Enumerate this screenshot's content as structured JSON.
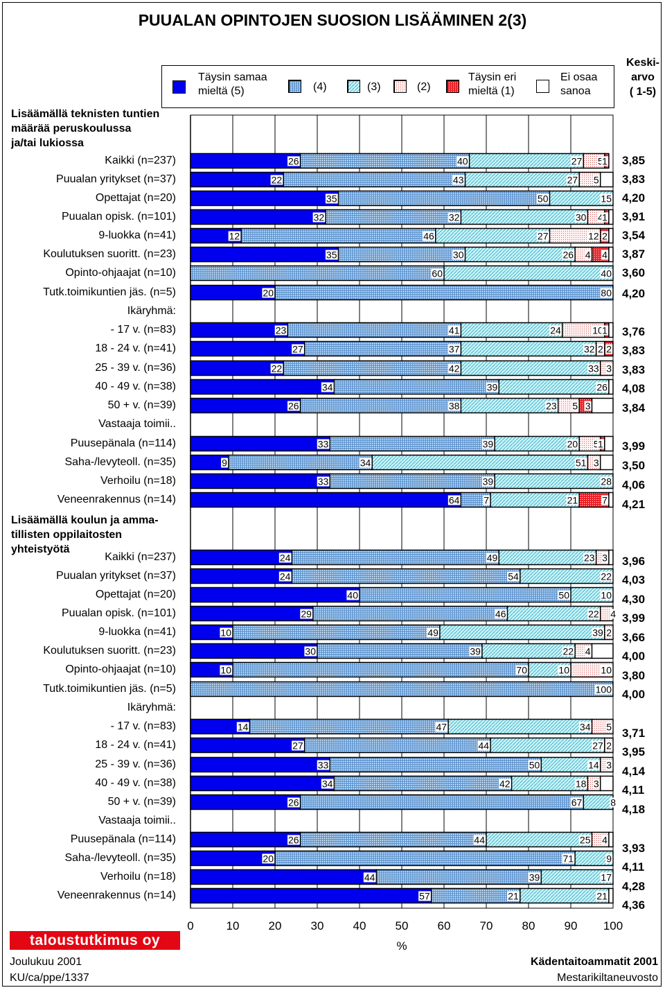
{
  "title": "PUUALAN OPINTOJEN SUOSION LISÄÄMINEN 2(3)",
  "legend": {
    "items": [
      {
        "label_lines": [
          "Täysin samaa",
          "mieltä (5)"
        ],
        "key": "s5"
      },
      {
        "label_lines": [
          "(4)"
        ],
        "key": "s4"
      },
      {
        "label_lines": [
          "(3)"
        ],
        "key": "s3"
      },
      {
        "label_lines": [
          "(2)"
        ],
        "key": "s2"
      },
      {
        "label_lines": [
          "Täysin eri",
          "mieltä (1)"
        ],
        "key": "s1"
      },
      {
        "label_lines": [
          "Ei osaa",
          "sanoa"
        ],
        "key": "eos"
      }
    ]
  },
  "avg_header": [
    "Keski-",
    "arvo",
    "( 1-5)"
  ],
  "colors": {
    "s5": "#0000ee",
    "s4": "#7fb0e0",
    "s3": "#b8f0f0",
    "s2": "#f2dada",
    "s1": "#e8232a",
    "eos": "#ffffff"
  },
  "chart_data": {
    "type": "stacked-bar-horizontal",
    "xlabel": "%",
    "xlim": [
      0,
      100
    ],
    "xticks": [
      "0",
      "10",
      "20",
      "30",
      "40",
      "50",
      "60",
      "70",
      "80",
      "90",
      "100"
    ],
    "series_names": [
      "Täysin samaa mieltä (5)",
      "(4)",
      "(3)",
      "(2)",
      "Täysin eri mieltä (1)",
      "Ei osaa sanoa"
    ],
    "sections": [
      {
        "title_lines": [
          "Lisäämällä teknisten tuntien",
          "määrää peruskoulussa",
          "ja/tai lukiossa"
        ],
        "rows": [
          {
            "label": "Kaikki (n=237)",
            "values": [
              26,
              40,
              27,
              5,
              1,
              0
            ],
            "labels": [
              "26",
              "40",
              "27",
              "5",
              "1",
              ""
            ],
            "avg": "3,85"
          },
          {
            "label": "Puualan yritykset (n=37)",
            "values": [
              22,
              43,
              27,
              5,
              0,
              3
            ],
            "labels": [
              "22",
              "43",
              "27",
              "5",
              "",
              ""
            ],
            "avg": "3,83"
          },
          {
            "label": "Opettajat (n=20)",
            "values": [
              35,
              50,
              15,
              0,
              0,
              0
            ],
            "labels": [
              "35",
              "50",
              "15",
              "",
              "",
              ""
            ],
            "avg": "4,20"
          },
          {
            "label": "Puualan opisk. (n=101)",
            "values": [
              32,
              32,
              30,
              4,
              1,
              1
            ],
            "labels": [
              "32",
              "32",
              "30",
              "4",
              "1",
              ""
            ],
            "avg": "3,91"
          },
          {
            "label": "9-luokka (n=41)",
            "values": [
              12,
              46,
              27,
              12,
              2,
              1
            ],
            "labels": [
              "12",
              "46",
              "27",
              "12",
              "2",
              ""
            ],
            "avg": "3,54"
          },
          {
            "label": "Koulutuksen suoritt. (n=23)",
            "values": [
              35,
              30,
              26,
              4,
              4,
              1
            ],
            "labels": [
              "35",
              "30",
              "26",
              "4",
              "4",
              ""
            ],
            "avg": "3,87"
          },
          {
            "label": "Opinto-ohjaajat (n=10)",
            "values": [
              0,
              60,
              40,
              0,
              0,
              0
            ],
            "labels": [
              "",
              "60",
              "40",
              "",
              "",
              ""
            ],
            "avg": "3,60"
          },
          {
            "label": "Tutk.toimikuntien jäs. (n=5)",
            "values": [
              20,
              80,
              0,
              0,
              0,
              0
            ],
            "labels": [
              "20",
              "80",
              "",
              "",
              "",
              ""
            ],
            "avg": "4,20"
          },
          {
            "label": "Ikäryhmä:",
            "heading": true
          },
          {
            "label": "- 17 v.  (n=83)",
            "values": [
              23,
              41,
              24,
              10,
              1,
              1
            ],
            "labels": [
              "23",
              "41",
              "24",
              "10",
              "1",
              ""
            ],
            "avg": "3,76"
          },
          {
            "label": "18 - 24 v. (n=41)",
            "values": [
              27,
              37,
              32,
              2,
              2,
              0
            ],
            "labels": [
              "27",
              "37",
              "32",
              "2",
              "2",
              ""
            ],
            "avg": "3,83"
          },
          {
            "label": "25 - 39 v. (n=36)",
            "values": [
              22,
              42,
              33,
              3,
              0,
              0
            ],
            "labels": [
              "22",
              "42",
              "33",
              "3",
              "",
              ""
            ],
            "avg": "3,83"
          },
          {
            "label": "40 - 49 v. (n=38)",
            "values": [
              34,
              39,
              26,
              0,
              0,
              1
            ],
            "labels": [
              "34",
              "39",
              "26",
              "",
              "",
              ""
            ],
            "avg": "4,08"
          },
          {
            "label": "50 + v.  (n=39)",
            "values": [
              26,
              38,
              23,
              5,
              3,
              5
            ],
            "labels": [
              "26",
              "38",
              "23",
              "5",
              "3",
              ""
            ],
            "avg": "3,84"
          },
          {
            "label": "Vastaaja toimii..",
            "heading": true
          },
          {
            "label": "Puusepänala (n=114)",
            "values": [
              33,
              39,
              20,
              5,
              1,
              2
            ],
            "labels": [
              "33",
              "39",
              "20",
              "5",
              "1",
              ""
            ],
            "avg": "3,99"
          },
          {
            "label": "Saha-/levyteoll. (n=35)",
            "values": [
              9,
              34,
              51,
              3,
              0,
              3
            ],
            "labels": [
              "9",
              "34",
              "51",
              "3",
              "",
              ""
            ],
            "avg": "3,50"
          },
          {
            "label": "Verhoilu (n=18)",
            "values": [
              33,
              39,
              28,
              0,
              0,
              0
            ],
            "labels": [
              "33",
              "39",
              "28",
              "",
              "",
              ""
            ],
            "avg": "4,06"
          },
          {
            "label": "Veneenrakennus (n=14)",
            "values": [
              64,
              7,
              21,
              0,
              7,
              1
            ],
            "labels": [
              "64",
              "7",
              "21",
              "",
              "7",
              ""
            ],
            "avg": "4,21"
          }
        ]
      },
      {
        "title_lines": [
          "Lisäämällä koulun ja amma-",
          "tillisten oppilaitosten",
          "yhteistyötä"
        ],
        "rows": [
          {
            "label": "Kaikki (n=237)",
            "values": [
              24,
              49,
              23,
              3,
              0,
              1
            ],
            "labels": [
              "24",
              "49",
              "23",
              "3",
              "",
              ""
            ],
            "avg": "3,96"
          },
          {
            "label": "Puualan yritykset (n=37)",
            "values": [
              24,
              54,
              22,
              0,
              0,
              0
            ],
            "labels": [
              "24",
              "54",
              "22",
              "",
              "",
              ""
            ],
            "avg": "4,03"
          },
          {
            "label": "Opettajat (n=20)",
            "values": [
              40,
              50,
              10,
              0,
              0,
              0
            ],
            "labels": [
              "40",
              "50",
              "10",
              "",
              "",
              ""
            ],
            "avg": "4,30"
          },
          {
            "label": "Puualan opisk. (n=101)",
            "values": [
              29,
              46,
              22,
              4,
              0,
              0
            ],
            "labels": [
              "29",
              "46",
              "22",
              "4",
              "",
              ""
            ],
            "avg": "3,99"
          },
          {
            "label": "9-luokka (n=41)",
            "values": [
              10,
              49,
              39,
              2,
              0,
              0
            ],
            "labels": [
              "10",
              "49",
              "39",
              "2",
              "",
              ""
            ],
            "avg": "3,66"
          },
          {
            "label": "Koulutuksen suoritt. (n=23)",
            "values": [
              30,
              39,
              22,
              4,
              0,
              5
            ],
            "labels": [
              "30",
              "39",
              "22",
              "4",
              "",
              ""
            ],
            "avg": "4,00"
          },
          {
            "label": "Opinto-ohjaajat (n=10)",
            "values": [
              10,
              70,
              10,
              10,
              0,
              0
            ],
            "labels": [
              "10",
              "70",
              "10",
              "10",
              "",
              ""
            ],
            "avg": "3,80"
          },
          {
            "label": "Tutk.toimikuntien jäs. (n=5)",
            "values": [
              0,
              100,
              0,
              0,
              0,
              0
            ],
            "labels": [
              "",
              "100",
              "",
              "",
              "",
              ""
            ],
            "avg": "4,00"
          },
          {
            "label": "Ikäryhmä:",
            "heading": true
          },
          {
            "label": "- 17 v.  (n=83)",
            "values": [
              14,
              47,
              34,
              5,
              0,
              0
            ],
            "labels": [
              "14",
              "47",
              "34",
              "5",
              "",
              ""
            ],
            "avg": "3,71"
          },
          {
            "label": "18 - 24 v. (n=41)",
            "values": [
              27,
              44,
              27,
              2,
              0,
              0
            ],
            "labels": [
              "27",
              "44",
              "27",
              "2",
              "",
              ""
            ],
            "avg": "3,95"
          },
          {
            "label": "25 - 39 v. (n=36)",
            "values": [
              33,
              50,
              14,
              3,
              0,
              0
            ],
            "labels": [
              "33",
              "50",
              "14",
              "3",
              "",
              ""
            ],
            "avg": "4,14"
          },
          {
            "label": "40 - 49 v. (n=38)",
            "values": [
              34,
              42,
              18,
              3,
              0,
              3
            ],
            "labels": [
              "34",
              "42",
              "18",
              "3",
              "",
              ""
            ],
            "avg": "4,11"
          },
          {
            "label": "50 + v.  (n=39)",
            "values": [
              26,
              67,
              8,
              0,
              0,
              0
            ],
            "labels": [
              "26",
              "67",
              "8",
              "",
              "",
              ""
            ],
            "avg": "4,18"
          },
          {
            "label": "Vastaaja toimii..",
            "heading": true
          },
          {
            "label": "Puusepänala (n=114)",
            "values": [
              26,
              44,
              25,
              4,
              0,
              1
            ],
            "labels": [
              "26",
              "44",
              "25",
              "4",
              "",
              ""
            ],
            "avg": "3,93"
          },
          {
            "label": "Saha-/levyteoll. (n=35)",
            "values": [
              20,
              71,
              9,
              0,
              0,
              0
            ],
            "labels": [
              "20",
              "71",
              "9",
              "",
              "",
              ""
            ],
            "avg": "4,11"
          },
          {
            "label": "Verhoilu (n=18)",
            "values": [
              44,
              39,
              17,
              0,
              0,
              0
            ],
            "labels": [
              "44",
              "39",
              "17",
              "",
              "",
              ""
            ],
            "avg": "4,28"
          },
          {
            "label": "Veneenrakennus (n=14)",
            "values": [
              57,
              21,
              21,
              0,
              0,
              1
            ],
            "labels": [
              "57",
              "21",
              "21",
              "",
              "",
              ""
            ],
            "avg": "4,36"
          }
        ]
      }
    ]
  },
  "footer": {
    "logo_text": "taloustutkimus oy",
    "left_line1": "Joulukuu 2001",
    "left_line2": "KU/ca/ppe/1337",
    "right_line1": "Kädentaitoammatit 2001",
    "right_line2": "Mestarikiltaneuvosto"
  }
}
